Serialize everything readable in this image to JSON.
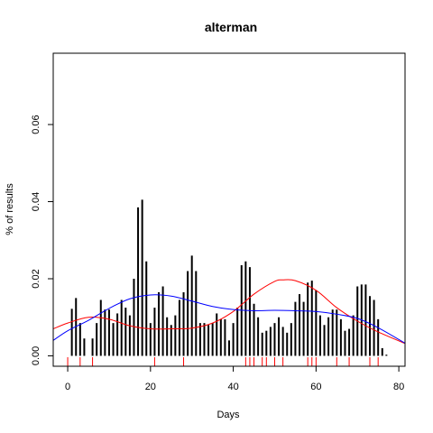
{
  "chart_data": {
    "type": "bar",
    "title": "alterman",
    "xlabel": "Days",
    "ylabel": "% of results",
    "xlim": [
      -3.5,
      81.5
    ],
    "ylim": [
      -0.0027,
      0.0785
    ],
    "x_ticks": [
      0,
      20,
      40,
      60,
      80
    ],
    "x_tick_labels": [
      "0",
      "20",
      "40",
      "60",
      "80"
    ],
    "y_ticks": [
      0.0,
      0.02,
      0.04,
      0.06
    ],
    "y_tick_labels": [
      "0.00",
      "0.02",
      "0.04",
      "0.06"
    ],
    "grid": false,
    "legend": "none",
    "bars": {
      "x": [
        1,
        2,
        3,
        4,
        5,
        6,
        7,
        8,
        9,
        10,
        11,
        12,
        13,
        14,
        15,
        16,
        17,
        18,
        19,
        20,
        21,
        22,
        23,
        24,
        25,
        26,
        27,
        28,
        29,
        30,
        31,
        32,
        33,
        34,
        35,
        36,
        37,
        38,
        39,
        40,
        41,
        42,
        43,
        44,
        45,
        46,
        47,
        48,
        49,
        50,
        51,
        52,
        53,
        54,
        55,
        56,
        57,
        58,
        59,
        60,
        61,
        62,
        63,
        64,
        65,
        66,
        67,
        68,
        69,
        70,
        71,
        72,
        73,
        74,
        75,
        76,
        77
      ],
      "values": [
        0.0122,
        0.015,
        0.0085,
        0.0045,
        0.0,
        0.0045,
        0.0085,
        0.0145,
        0.012,
        0.012,
        0.0085,
        0.011,
        0.0145,
        0.0125,
        0.0105,
        0.02,
        0.0385,
        0.0405,
        0.0245,
        0.0085,
        0.0125,
        0.0165,
        0.018,
        0.01,
        0.008,
        0.0105,
        0.0145,
        0.0165,
        0.022,
        0.026,
        0.022,
        0.0085,
        0.0085,
        0.008,
        0.0085,
        0.011,
        0.0095,
        0.0095,
        0.004,
        0.0085,
        0.0125,
        0.0235,
        0.0245,
        0.023,
        0.0135,
        0.01,
        0.006,
        0.0065,
        0.0075,
        0.0085,
        0.01,
        0.0075,
        0.006,
        0.0085,
        0.014,
        0.016,
        0.014,
        0.019,
        0.0195,
        0.017,
        0.0105,
        0.008,
        0.01,
        0.012,
        0.012,
        0.0095,
        0.0065,
        0.007,
        0.0105,
        0.018,
        0.0185,
        0.0185,
        0.0155,
        0.0145,
        0.0095,
        0.002,
        0.0003
      ],
      "color": "#000000"
    },
    "rug": {
      "x": [
        0,
        3,
        6,
        21,
        28,
        43,
        44,
        45,
        47,
        48,
        50,
        52,
        58,
        59,
        60,
        65,
        68,
        73,
        75
      ],
      "color": "#ff0000"
    },
    "series": [
      {
        "color": "#ff0000",
        "x": [
          -3.5,
          0,
          5,
          10,
          15,
          20,
          25,
          30,
          35,
          40,
          45,
          50,
          52,
          55,
          60,
          65,
          70,
          75,
          81.5
        ],
        "values": [
          0.007,
          0.0085,
          0.01,
          0.0095,
          0.0078,
          0.007,
          0.007,
          0.0072,
          0.0085,
          0.0115,
          0.016,
          0.0193,
          0.0197,
          0.0195,
          0.017,
          0.0125,
          0.009,
          0.0062,
          0.0032
        ]
      },
      {
        "color": "#0000ff",
        "x": [
          -3.5,
          0,
          5,
          10,
          15,
          20,
          25,
          30,
          35,
          40,
          45,
          50,
          55,
          60,
          65,
          70,
          75,
          81.5
        ],
        "values": [
          0.004,
          0.0065,
          0.0092,
          0.0123,
          0.0148,
          0.0158,
          0.0155,
          0.0142,
          0.0128,
          0.012,
          0.0117,
          0.0118,
          0.0117,
          0.0115,
          0.0108,
          0.0097,
          0.0073,
          0.0033
        ]
      }
    ]
  }
}
